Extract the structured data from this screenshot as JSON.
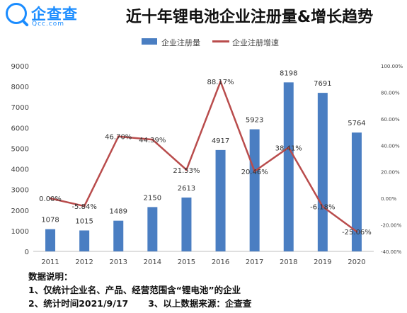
{
  "brand": {
    "name": "企查查",
    "domain": "Qcc.com",
    "color": "#1a8cff"
  },
  "title": "近十年锂电池企业注册量&增长趋势",
  "chart_data": {
    "type": "bar",
    "categories": [
      "2011",
      "2012",
      "2013",
      "2014",
      "2015",
      "2016",
      "2017",
      "2018",
      "2019",
      "2020"
    ],
    "series": [
      {
        "name": "企业注册量",
        "type": "bar",
        "axis": "left",
        "color": "#4a7ec2",
        "values": [
          1078,
          1015,
          1489,
          2150,
          2613,
          4917,
          5923,
          8198,
          7691,
          5764
        ],
        "labels": [
          "1078",
          "1015",
          "1489",
          "2150",
          "2613",
          "4917",
          "5923",
          "8198",
          "7691",
          "5764"
        ]
      },
      {
        "name": "企业注册增速",
        "type": "line",
        "axis": "right",
        "color": "#b94c4c",
        "values": [
          0.0,
          -5.84,
          46.7,
          44.39,
          21.53,
          88.17,
          20.46,
          38.41,
          -6.18,
          -25.06
        ],
        "labels": [
          "0.00%",
          "-5.84%",
          "46.70%",
          "44.39%",
          "21.53%",
          "88.17%",
          "20.46%",
          "38.41%",
          "-6.18%",
          "-25.06%"
        ]
      }
    ],
    "y_left": {
      "min": 0,
      "max": 9000,
      "ticks": [
        "0",
        "1000",
        "2000",
        "3000",
        "4000",
        "5000",
        "6000",
        "7000",
        "8000",
        "9000"
      ]
    },
    "y_right": {
      "min": -40,
      "max": 100,
      "ticks": [
        "-40.00%",
        "-20.00%",
        "0.00%",
        "20.00%",
        "40.00%",
        "60.00%",
        "80.00%",
        "100.00%"
      ]
    },
    "grid": false,
    "legend": "top-center"
  },
  "notes": {
    "heading": "数据说明：",
    "line1": "1、仅统计企业名、产品、经营范围含“锂电池”的企业",
    "line2a": "2、统计时间2021/9/17",
    "line2b": "3、以上数据来源：企查查"
  }
}
